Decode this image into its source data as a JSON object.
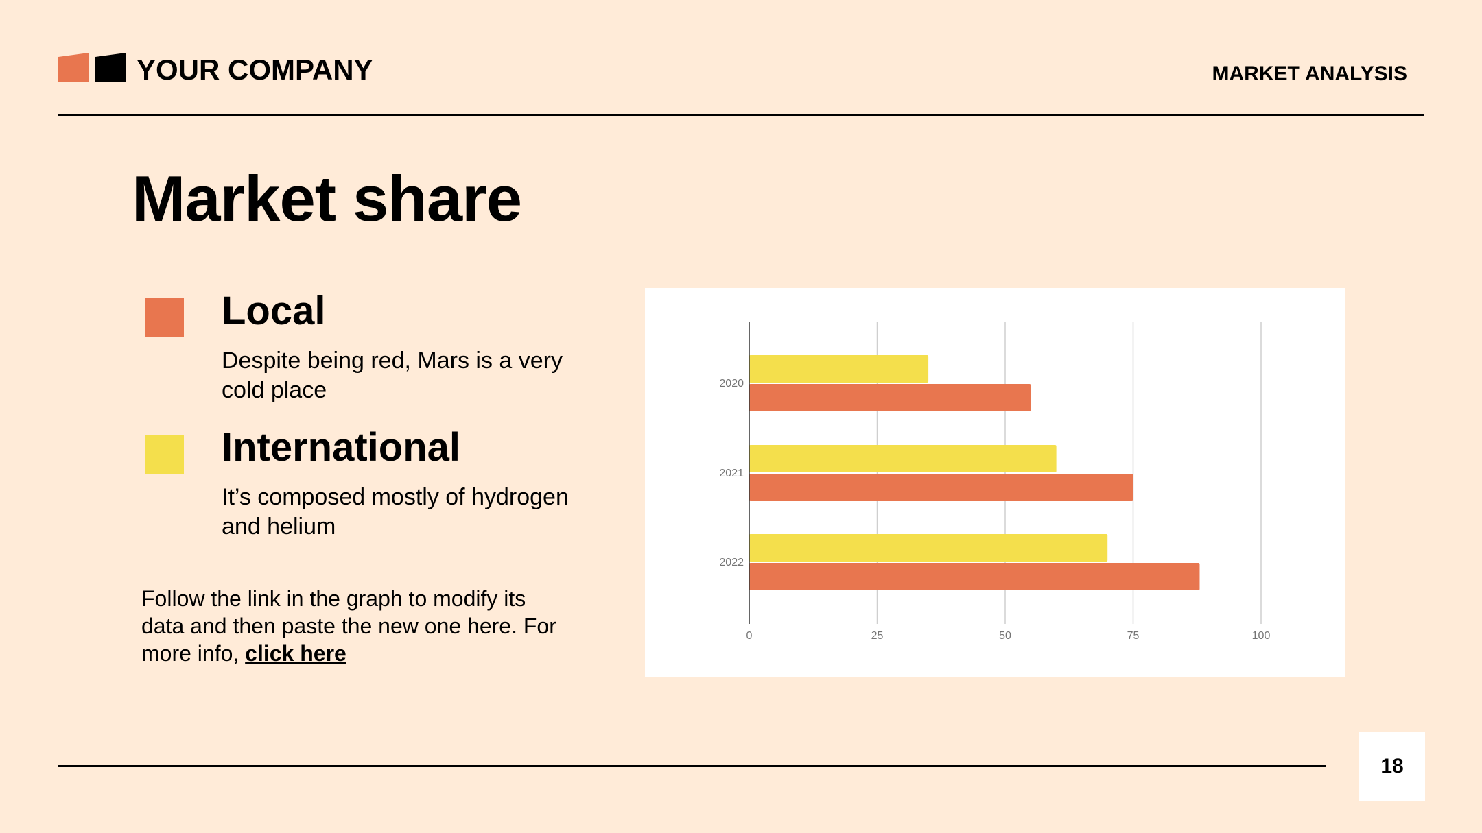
{
  "header": {
    "company": "YOUR COMPANY",
    "section": "MARKET ANALYSIS"
  },
  "title": "Market share",
  "legend": [
    {
      "label": "Local",
      "description": "Despite being red, Mars is a very cold place",
      "color": "#e8764f"
    },
    {
      "label": "International",
      "description": "It’s composed mostly of hydrogen and helium",
      "color": "#f4df4c"
    }
  ],
  "note": {
    "text": "Follow the link in the graph to modify its data and then paste the new one here. For more info, ",
    "link_label": "click here"
  },
  "page_number": "18",
  "colors": {
    "background": "#ffebd8",
    "local": "#e8764f",
    "international": "#f4df4c"
  },
  "chart_data": {
    "type": "bar",
    "orientation": "horizontal",
    "categories": [
      "2020",
      "2021",
      "2022"
    ],
    "series": [
      {
        "key": "international",
        "values": [
          35,
          60,
          70
        ],
        "color": "#f4df4c"
      },
      {
        "key": "local",
        "values": [
          55,
          75,
          88
        ],
        "color": "#e8764f"
      }
    ],
    "x_ticks": [
      "0",
      "25",
      "50",
      "75",
      "100"
    ],
    "xlim": [
      0,
      100
    ],
    "grid": true,
    "legend": "none"
  }
}
